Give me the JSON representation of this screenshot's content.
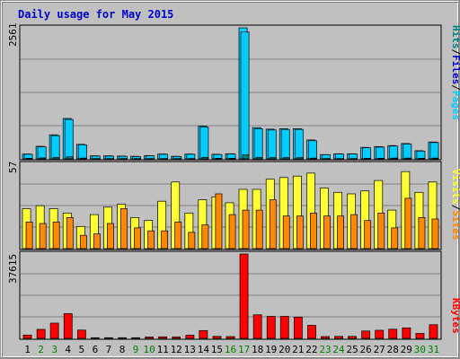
{
  "chart_data": {
    "title": "Daily usage for May 2015",
    "type": "bar",
    "colors": {
      "background": "#C0C0C0",
      "plot": "#C0C0C0",
      "border": "#666666",
      "grid": "#808080",
      "title": "#0000CC",
      "pages": "#008080",
      "files": "#0000CC",
      "hits": "#00CCFF",
      "visits_color": "#FFFF33",
      "sites_color": "#FF8800",
      "kbytes_color": "#FF0000",
      "x_weekday": "#000000",
      "x_weekend": "#008000"
    },
    "days": [
      "1",
      "2",
      "3",
      "4",
      "5",
      "6",
      "7",
      "8",
      "9",
      "10",
      "11",
      "12",
      "13",
      "14",
      "15",
      "16",
      "17",
      "18",
      "19",
      "20",
      "21",
      "22",
      "23",
      "24",
      "25",
      "26",
      "27",
      "28",
      "29",
      "30",
      "31"
    ],
    "weekend_days": [
      "2",
      "3",
      "9",
      "10",
      "16",
      "17",
      "23",
      "24",
      "30",
      "31"
    ],
    "panels": [
      {
        "id": "hits-files-pages",
        "max_label": "2561",
        "ymax": 2561,
        "legend": [
          "Pages",
          "/",
          "Files",
          "/",
          "Hits"
        ],
        "series": [
          {
            "name": "Hits",
            "values": [
              95,
              245,
              470,
              790,
              285,
              60,
              60,
              55,
              50,
              65,
              95,
              50,
              95,
              640,
              90,
              100,
              2561,
              610,
              580,
              590,
              590,
              370,
              85,
              100,
              100,
              225,
              240,
              260,
              300,
              160,
              330
            ]
          },
          {
            "name": "Files",
            "values": [
              90,
              235,
              455,
              770,
              275,
              55,
              55,
              50,
              45,
              60,
              90,
              45,
              90,
              620,
              85,
              95,
              2480,
              590,
              565,
              575,
              575,
              355,
              80,
              95,
              95,
              215,
              230,
              250,
              290,
              150,
              320
            ]
          },
          {
            "name": "Pages",
            "values": [
              10,
              20,
              30,
              40,
              15,
              5,
              5,
              5,
              5,
              5,
              5,
              5,
              5,
              30,
              10,
              10,
              80,
              30,
              25,
              25,
              25,
              15,
              5,
              5,
              5,
              10,
              10,
              15,
              15,
              10,
              15
            ]
          }
        ]
      },
      {
        "id": "visits-sites",
        "max_label": "57",
        "ymax": 57,
        "legend": [
          "Sites",
          "/",
          "Visits"
        ],
        "series": [
          {
            "name": "Visits",
            "values": [
              27,
              29,
              27,
              24,
              15,
              23,
              28,
              30,
              21,
              19,
              32,
              45,
              24,
              33,
              35,
              31,
              40,
              40,
              47,
              48,
              49,
              51,
              41,
              38,
              37,
              39,
              46,
              26,
              52,
              38,
              45
            ]
          },
          {
            "name": "Sites",
            "values": [
              18,
              17,
              18,
              21,
              9,
              10,
              17,
              27,
              14,
              12,
              12,
              18,
              11,
              16,
              37,
              23,
              26,
              26,
              33,
              22,
              22,
              24,
              22,
              22,
              23,
              19,
              24,
              14,
              34,
              21,
              20
            ]
          }
        ]
      },
      {
        "id": "kbytes",
        "max_label": "37615",
        "ymax": 37615,
        "legend": [
          "KBytes"
        ],
        "series": [
          {
            "name": "KBytes",
            "values": [
              1500,
              4000,
              6800,
              11000,
              3700,
              300,
              300,
              300,
              300,
              600,
              700,
              600,
              1400,
              3500,
              900,
              800,
              37615,
              10500,
              9800,
              9800,
              9500,
              5800,
              800,
              900,
              900,
              3300,
              3600,
              4100,
              4700,
              2200,
              6100
            ]
          }
        ]
      }
    ]
  }
}
